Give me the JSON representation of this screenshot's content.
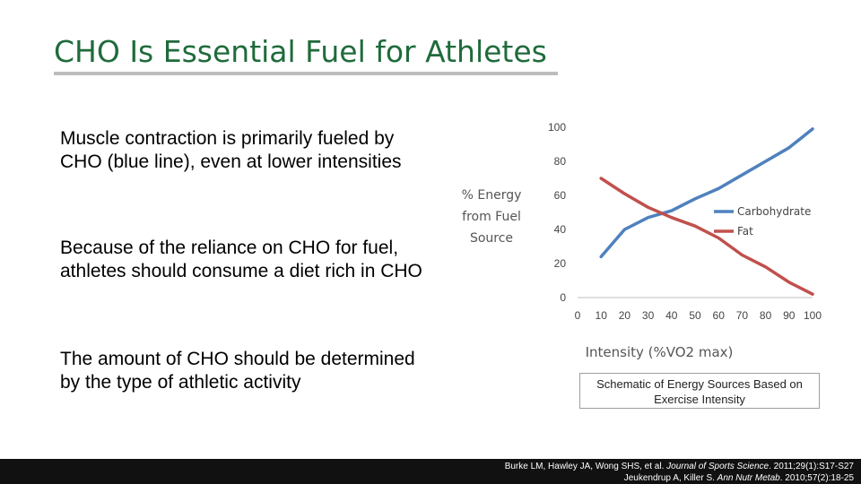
{
  "title": "CHO Is Essential Fuel for Athletes",
  "bullets": [
    "Muscle contraction is primarily fueled by CHO (blue line), even at lower intensities",
    "Because of the reliance on CHO for fuel, athletes should consume a diet rich in CHO",
    "The amount of CHO should be determined by the type of athletic activity"
  ],
  "caption": "Schematic of Energy Sources Based on Exercise Intensity",
  "footer": {
    "line1_prefix": "Burke LM, Hawley JA, Wong SHS, et al. ",
    "line1_journal": "Journal of Sports Science",
    "line1_suffix": ". 2011;29(1):S17-S27",
    "line2_prefix": "Jeukendrup A, Killer S. ",
    "line2_journal": "Ann Nutr Metab",
    "line2_suffix": ". 2010;57(2):18-25"
  },
  "chart_data": {
    "type": "line",
    "ylabel_lines": [
      "% Energy",
      "from Fuel",
      "Source"
    ],
    "xlabel": "Intensity (%VO2 max)",
    "x": [
      10,
      20,
      30,
      40,
      50,
      60,
      70,
      80,
      90,
      100
    ],
    "xticks": [
      0,
      10,
      20,
      30,
      40,
      50,
      60,
      70,
      80,
      90,
      100
    ],
    "yticks": [
      0,
      20,
      40,
      60,
      80,
      100
    ],
    "xlim": [
      0,
      100
    ],
    "ylim": [
      0,
      100
    ],
    "grid": false,
    "legend_position": "right",
    "series": [
      {
        "name": "Carbohydrate",
        "color": "#4f81bd",
        "values": [
          24,
          40,
          47,
          51,
          58,
          64,
          72,
          80,
          88,
          99
        ]
      },
      {
        "name": "Fat",
        "color": "#c0504d",
        "values": [
          70,
          61,
          53,
          47,
          42,
          35,
          25,
          18,
          9,
          2
        ]
      }
    ]
  }
}
